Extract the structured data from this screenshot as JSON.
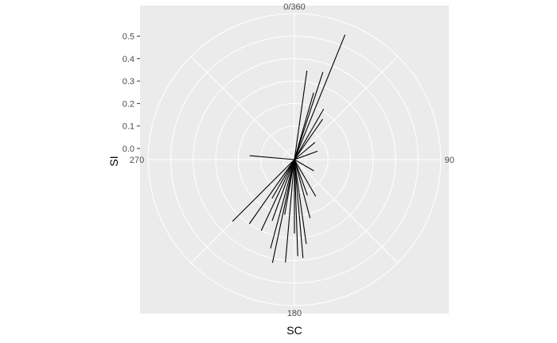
{
  "chart_data": {
    "type": "polar-segments",
    "xlabel": "SC",
    "ylabel": "SI",
    "angle_ticks": [
      {
        "deg": 0,
        "label": "0/360"
      },
      {
        "deg": 90,
        "label": "90"
      },
      {
        "deg": 180,
        "label": "180"
      },
      {
        "deg": 270,
        "label": "270"
      }
    ],
    "radius_ticks": [
      0.0,
      0.1,
      0.2,
      0.3,
      0.4,
      0.5
    ],
    "radius_tick_labels": [
      "0.0",
      "0.1",
      "0.2",
      "0.3",
      "0.4",
      "0.5"
    ],
    "rlim": [
      0,
      0.6
    ],
    "grid": true,
    "colors": {
      "panel": "#ebebeb",
      "grid": "#ffffff",
      "segment": "#000000"
    },
    "segments": [
      {
        "angle": 22,
        "radius": 0.55
      },
      {
        "angle": 8,
        "radius": 0.35
      },
      {
        "angle": 18,
        "radius": 0.36
      },
      {
        "angle": 30,
        "radius": 0.21
      },
      {
        "angle": 16,
        "radius": 0.26
      },
      {
        "angle": 35,
        "radius": 0.17
      },
      {
        "angle": 50,
        "radius": 0.07
      },
      {
        "angle": 70,
        "radius": 0.06
      },
      {
        "angle": 275,
        "radius": 0.15
      },
      {
        "angle": 150,
        "radius": 0.14
      },
      {
        "angle": 215,
        "radius": 0.3
      },
      {
        "angle": 225,
        "radius": 0.34
      },
      {
        "angle": 205,
        "radius": 0.3
      },
      {
        "angle": 195,
        "radius": 0.36
      },
      {
        "angle": 192,
        "radius": 0.42
      },
      {
        "angle": 185,
        "radius": 0.41
      },
      {
        "angle": 175,
        "radius": 0.39
      },
      {
        "angle": 178,
        "radius": 0.38
      },
      {
        "angle": 172,
        "radius": 0.33
      },
      {
        "angle": 165,
        "radius": 0.22
      },
      {
        "angle": 200,
        "radius": 0.24
      },
      {
        "angle": 190,
        "radius": 0.2
      },
      {
        "angle": 160,
        "radius": 0.12
      },
      {
        "angle": 210,
        "radius": 0.15
      },
      {
        "angle": 180,
        "radius": 0.28
      },
      {
        "angle": 120,
        "radius": 0.05
      }
    ]
  }
}
